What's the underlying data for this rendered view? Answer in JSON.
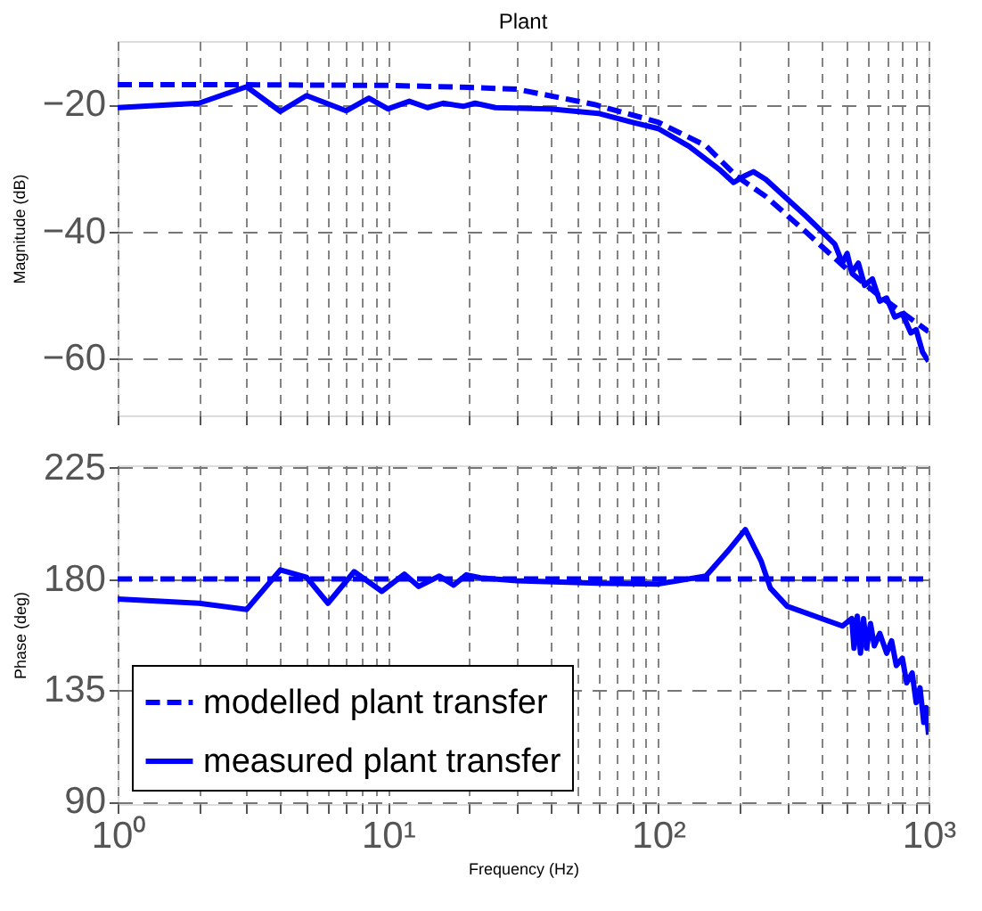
{
  "chart_data": [
    {
      "type": "line",
      "title": "Plant",
      "ylabel": "Magnitude (dB)",
      "log": "x",
      "grid": true,
      "tick_labels": "y",
      "legend": false,
      "xlim": [
        1,
        1000
      ],
      "xticks": [
        {
          "value": 1,
          "label": null
        },
        {
          "value": 2,
          "label": null
        },
        {
          "value": 3,
          "label": null
        },
        {
          "value": 4,
          "label": null
        },
        {
          "value": 5,
          "label": null
        },
        {
          "value": 6,
          "label": null
        },
        {
          "value": 7,
          "label": null
        },
        {
          "value": 8,
          "label": null
        },
        {
          "value": 9,
          "label": null
        },
        {
          "value": 10,
          "label": null
        },
        {
          "value": 20,
          "label": null
        },
        {
          "value": 30,
          "label": null
        },
        {
          "value": 40,
          "label": null
        },
        {
          "value": 50,
          "label": null
        },
        {
          "value": 60,
          "label": null
        },
        {
          "value": 70,
          "label": null
        },
        {
          "value": 80,
          "label": null
        },
        {
          "value": 90,
          "label": null
        },
        {
          "value": 100,
          "label": null
        },
        {
          "value": 200,
          "label": null
        },
        {
          "value": 300,
          "label": null
        },
        {
          "value": 400,
          "label": null
        },
        {
          "value": 500,
          "label": null
        },
        {
          "value": 600,
          "label": null
        },
        {
          "value": 700,
          "label": null
        },
        {
          "value": 800,
          "label": null
        },
        {
          "value": 900,
          "label": null
        },
        {
          "value": 1000,
          "label": null
        }
      ],
      "ylim": [
        -69,
        -10
      ],
      "yticks": [
        -20,
        -40,
        -60
      ],
      "series": [
        {
          "color": "#0000ff",
          "line_style": "dashed",
          "x": [
            1,
            3,
            10,
            20,
            30,
            58,
            100,
            150,
            195,
            250,
            350,
            500,
            650,
            1000
          ],
          "values": [
            -16.9,
            -16.9,
            -17.0,
            -17.3,
            -17.6,
            -20.0,
            -22.8,
            -26.5,
            -31.3,
            -34.5,
            -40.0,
            -46.0,
            -50.0,
            -55.8
          ]
        },
        {
          "color": "#0000ff",
          "line_style": "solid",
          "x": [
            1,
            2,
            3,
            4,
            5,
            7,
            8.5,
            10,
            12,
            14,
            16,
            19,
            21,
            25,
            40,
            60,
            80,
            100,
            130,
            170,
            190,
            210,
            225,
            250,
            350,
            450,
            480,
            500,
            520,
            550,
            580,
            620,
            660,
            700,
            750,
            800,
            860,
            900,
            950,
            1000
          ],
          "values": [
            -20.5,
            -19.8,
            -17.2,
            -21.1,
            -18.6,
            -21.0,
            -19.0,
            -20.7,
            -19.5,
            -20.5,
            -19.8,
            -20.3,
            -19.8,
            -20.5,
            -20.7,
            -21.4,
            -22.8,
            -23.8,
            -26.6,
            -30.4,
            -32.3,
            -31.2,
            -30.6,
            -31.8,
            -37.5,
            -42.0,
            -45.0,
            -43.5,
            -46.5,
            -45.0,
            -48.5,
            -47.5,
            -51.0,
            -50.5,
            -53.5,
            -53.0,
            -56.0,
            -55.5,
            -59.0,
            -60.5
          ]
        }
      ]
    },
    {
      "type": "line",
      "xlabel": "Frequency  (Hz)",
      "ylabel": "Phase (deg)",
      "log": "x",
      "grid": true,
      "legend": "bottom left",
      "xlim": [
        1,
        1000
      ],
      "xticks": [
        {
          "value": 1,
          "label": "10⁰"
        },
        {
          "value": 2,
          "label": null
        },
        {
          "value": 3,
          "label": null
        },
        {
          "value": 4,
          "label": null
        },
        {
          "value": 5,
          "label": null
        },
        {
          "value": 6,
          "label": null
        },
        {
          "value": 7,
          "label": null
        },
        {
          "value": 8,
          "label": null
        },
        {
          "value": 9,
          "label": null
        },
        {
          "value": 10,
          "label": "10¹"
        },
        {
          "value": 20,
          "label": null
        },
        {
          "value": 30,
          "label": null
        },
        {
          "value": 40,
          "label": null
        },
        {
          "value": 50,
          "label": null
        },
        {
          "value": 60,
          "label": null
        },
        {
          "value": 70,
          "label": null
        },
        {
          "value": 80,
          "label": null
        },
        {
          "value": 90,
          "label": null
        },
        {
          "value": 100,
          "label": "10²"
        },
        {
          "value": 200,
          "label": null
        },
        {
          "value": 300,
          "label": null
        },
        {
          "value": 400,
          "label": null
        },
        {
          "value": 500,
          "label": null
        },
        {
          "value": 600,
          "label": null
        },
        {
          "value": 700,
          "label": null
        },
        {
          "value": 800,
          "label": null
        },
        {
          "value": 900,
          "label": null
        },
        {
          "value": 1000,
          "label": "10³"
        }
      ],
      "ylim": [
        89,
        226
      ],
      "yticks": [
        90,
        135,
        180,
        225
      ],
      "series": [
        {
          "name": "modelled plant transfer",
          "color": "#0000ff",
          "line_style": "dashed",
          "x": [
            1,
            1000
          ],
          "values": [
            180,
            180
          ]
        },
        {
          "name": "measured plant transfer",
          "color": "#0000ff",
          "line_style": "solid",
          "x": [
            1,
            2,
            3,
            4,
            5,
            6,
            7.5,
            9.5,
            11.5,
            13,
            15.5,
            17.5,
            19.5,
            22,
            30,
            60,
            100,
            150,
            180,
            210,
            240,
            260,
            300,
            480,
            520,
            530,
            545,
            560,
            575,
            590,
            610,
            630,
            660,
            700,
            730,
            760,
            800,
            830,
            870,
            900,
            930,
            960,
            980,
            1000
          ],
          "values": [
            171.9,
            170.2,
            167.7,
            183.7,
            180.7,
            170.2,
            183.0,
            175.0,
            182.0,
            177.0,
            181.2,
            177.5,
            181.7,
            180.5,
            179.3,
            178.3,
            178.0,
            181.2,
            191.0,
            200.0,
            187.4,
            176.3,
            169.0,
            161.0,
            164.0,
            152.0,
            165.0,
            150.0,
            164.0,
            152.0,
            162.0,
            153.0,
            158.0,
            150.0,
            155.0,
            145.0,
            148.0,
            138.0,
            142.0,
            130.0,
            136.0,
            122.0,
            128.0,
            117.0
          ]
        }
      ]
    }
  ]
}
